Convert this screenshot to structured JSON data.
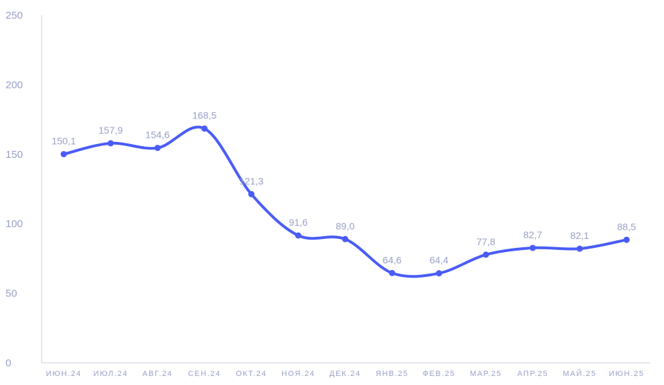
{
  "chart_data": {
    "type": "line",
    "title": "",
    "xlabel": "",
    "ylabel": "",
    "ylim": [
      0,
      250
    ],
    "yticks": [
      "0",
      "50",
      "100",
      "150",
      "200",
      "250"
    ],
    "categories": [
      "ИЮН.24",
      "ИЮЛ.24",
      "АВГ.24",
      "СЕН.24",
      "ОКТ.24",
      "НОЯ.24",
      "ДЕК.24",
      "ЯНВ.25",
      "ФЕВ.25",
      "МАР.25",
      "АПР.25",
      "МАЙ.25",
      "ИЮН.25"
    ],
    "values": [
      150.1,
      157.9,
      154.6,
      168.5,
      121.3,
      91.6,
      89.0,
      64.6,
      64.4,
      77.8,
      82.7,
      82.1,
      88.5
    ],
    "value_labels": [
      "150,1",
      "157,9",
      "154,6",
      "168,5",
      "121,3",
      "91,6",
      "89,0",
      "64,6",
      "64,4",
      "77,8",
      "82,7",
      "82,1",
      "88,5"
    ],
    "line_color": "#4a5cf5",
    "axis_color": "#c9cce6",
    "grid": false
  }
}
